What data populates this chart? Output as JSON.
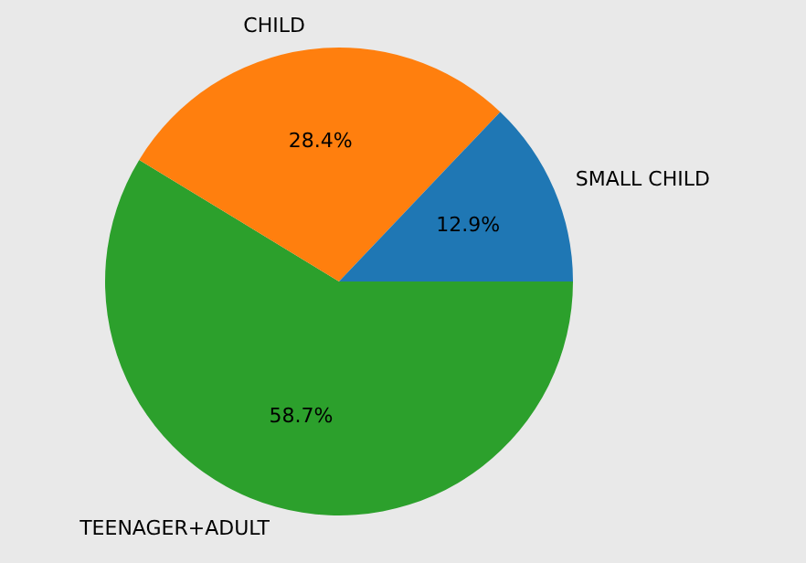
{
  "chart_data": {
    "type": "pie",
    "categories": [
      "SMALL CHILD",
      "CHILD",
      "TEENAGER+ADULT"
    ],
    "values": [
      12.9,
      28.4,
      58.7
    ],
    "colors": [
      "#1f77b4",
      "#ff7f0e",
      "#2ca02c"
    ],
    "value_labels": [
      "12.9%",
      "28.4%",
      "58.7%"
    ],
    "legend": false
  }
}
